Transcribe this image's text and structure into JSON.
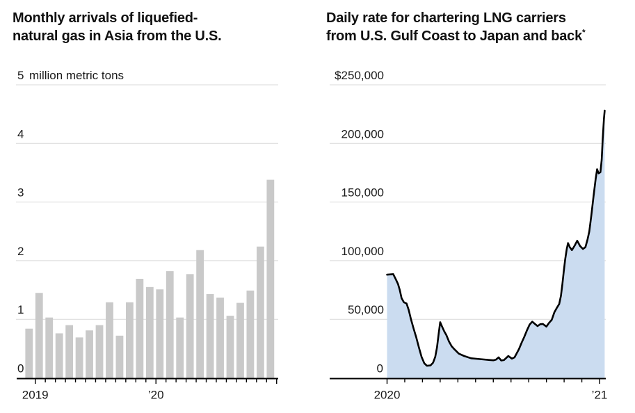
{
  "colors": {
    "background": "#ffffff",
    "title_text": "#111111",
    "tick_text": "#1a1a1a",
    "grid": "#d9d9d9",
    "axis": "#000000",
    "bar": "#c9c9c9",
    "area_fill": "#cbdcf0",
    "line": "#000000"
  },
  "chart_data": [
    {
      "type": "bar",
      "title": "Monthly arrivals of liquefied-natural gas in Asia from the U.S.",
      "title_lines": [
        "Monthly arrivals of liquefied-",
        "natural gas in Asia from the U.S."
      ],
      "unit_label": "million metric tons",
      "categories": [
        "Jan 2019",
        "Feb 2019",
        "Mar 2019",
        "Apr 2019",
        "May 2019",
        "Jun 2019",
        "Jul 2019",
        "Aug 2019",
        "Sep 2019",
        "Oct 2019",
        "Nov 2019",
        "Dec 2019",
        "Jan 2020",
        "Feb 2020",
        "Mar 2020",
        "Apr 2020",
        "May 2020",
        "Jun 2020",
        "Jul 2020",
        "Aug 2020",
        "Sep 2020",
        "Oct 2020",
        "Nov 2020",
        "Dec 2020",
        "Jan 2021"
      ],
      "values": [
        0.84,
        1.45,
        1.03,
        0.76,
        0.9,
        0.69,
        0.81,
        0.9,
        1.29,
        0.72,
        1.29,
        1.69,
        1.55,
        1.51,
        1.82,
        1.03,
        1.77,
        2.18,
        1.43,
        1.37,
        1.06,
        1.28,
        1.49,
        2.24,
        3.38
      ],
      "ylim": [
        0,
        5
      ],
      "yticks": [
        0,
        1,
        2,
        3,
        4,
        5
      ],
      "ytick_labels": [
        "0",
        "1",
        "2",
        "3",
        "4",
        "5"
      ],
      "xtick_labels": [
        {
          "index": 0,
          "label": "2019"
        },
        {
          "index": 12,
          "label": "’20"
        }
      ],
      "x_ticks": "monthly",
      "grid": true,
      "legend": "none"
    },
    {
      "type": "area",
      "title": "Daily rate for chartering LNG carriers from U.S. Gulf Coast to Japan and back*",
      "title_lines": [
        "Daily rate for chartering LNG carriers",
        "from U.S. Gulf Coast to Japan and back"
      ],
      "footnote_marker": "*",
      "x_unit": "months since Jan 2020",
      "points": [
        [
          0,
          88000
        ],
        [
          0.35,
          88500
        ],
        [
          0.5,
          84000
        ],
        [
          0.62,
          80000
        ],
        [
          0.72,
          75000
        ],
        [
          0.82,
          68000
        ],
        [
          0.95,
          64500
        ],
        [
          1.1,
          63500
        ],
        [
          1.22,
          58000
        ],
        [
          1.35,
          50000
        ],
        [
          1.5,
          42000
        ],
        [
          1.65,
          34500
        ],
        [
          1.8,
          26000
        ],
        [
          1.95,
          18000
        ],
        [
          2.1,
          12500
        ],
        [
          2.25,
          10300
        ],
        [
          2.45,
          10600
        ],
        [
          2.6,
          13000
        ],
        [
          2.72,
          18000
        ],
        [
          2.82,
          26000
        ],
        [
          2.92,
          38000
        ],
        [
          3.0,
          47500
        ],
        [
          3.1,
          44000
        ],
        [
          3.22,
          40000
        ],
        [
          3.35,
          36500
        ],
        [
          3.5,
          31000
        ],
        [
          3.65,
          27000
        ],
        [
          3.8,
          24500
        ],
        [
          4.05,
          20700
        ],
        [
          4.35,
          18700
        ],
        [
          4.75,
          16700
        ],
        [
          5.25,
          16000
        ],
        [
          5.75,
          15300
        ],
        [
          6.0,
          15000
        ],
        [
          6.15,
          15600
        ],
        [
          6.3,
          17500
        ],
        [
          6.45,
          14800
        ],
        [
          6.6,
          15200
        ],
        [
          6.85,
          18700
        ],
        [
          7.05,
          16400
        ],
        [
          7.2,
          17500
        ],
        [
          7.45,
          24600
        ],
        [
          7.6,
          30000
        ],
        [
          7.75,
          35000
        ],
        [
          7.9,
          40500
        ],
        [
          8.05,
          45500
        ],
        [
          8.2,
          48000
        ],
        [
          8.35,
          46000
        ],
        [
          8.5,
          44200
        ],
        [
          8.65,
          45800
        ],
        [
          8.8,
          46000
        ],
        [
          9.0,
          43800
        ],
        [
          9.15,
          47000
        ],
        [
          9.3,
          49500
        ],
        [
          9.45,
          56000
        ],
        [
          9.6,
          60000
        ],
        [
          9.72,
          63000
        ],
        [
          9.82,
          70000
        ],
        [
          9.9,
          80000
        ],
        [
          9.98,
          91000
        ],
        [
          10.06,
          101000
        ],
        [
          10.15,
          110000
        ],
        [
          10.22,
          115000
        ],
        [
          10.32,
          111500
        ],
        [
          10.44,
          109000
        ],
        [
          10.6,
          113000
        ],
        [
          10.74,
          117000
        ],
        [
          10.9,
          112500
        ],
        [
          11.06,
          110000
        ],
        [
          11.2,
          111500
        ],
        [
          11.32,
          118000
        ],
        [
          11.42,
          125000
        ],
        [
          11.54,
          139000
        ],
        [
          11.66,
          155000
        ],
        [
          11.78,
          169500
        ],
        [
          11.86,
          178000
        ],
        [
          11.95,
          174500
        ],
        [
          12.05,
          175500
        ],
        [
          12.12,
          186000
        ],
        [
          12.18,
          204000
        ],
        [
          12.25,
          221500
        ],
        [
          12.29,
          228000
        ]
      ],
      "ylim": [
        0,
        250000
      ],
      "yticks": [
        0,
        50000,
        100000,
        150000,
        200000,
        250000
      ],
      "ytick_labels": [
        "0",
        "50,000",
        "100,000",
        "150,000",
        "200,000",
        "$250,000"
      ],
      "xtick_labels": [
        {
          "index": 0,
          "label": "2020"
        },
        {
          "index": 12,
          "label": "’21"
        }
      ],
      "x_ticks": "monthly",
      "grid": true,
      "legend": "none"
    }
  ]
}
